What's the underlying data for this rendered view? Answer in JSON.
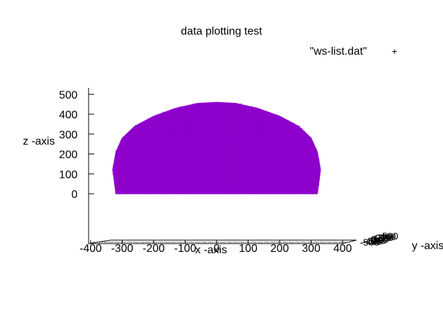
{
  "chart_data": {
    "type": "scatter",
    "title": "data plotting test",
    "xlabel": "x -axis",
    "ylabel": "y -axis",
    "zlabel": "z -axis",
    "legend": {
      "entries": [
        "\"ws-list.dat\""
      ],
      "placement": "top-right"
    },
    "z_ticks": [
      "500",
      "400",
      "300",
      "200",
      "100",
      "0"
    ],
    "x_ticks": [
      "-400",
      "-300",
      "-200",
      "-100",
      "0",
      "100",
      "200",
      "300",
      "400"
    ],
    "y_ticks": [
      "-500",
      "-400",
      "-300",
      "-200",
      "-100",
      "0",
      "100",
      "200",
      "300",
      "400",
      "500"
    ],
    "xlim": [
      -400,
      400
    ],
    "zlim": [
      0,
      500
    ],
    "series": [
      {
        "name": "\"ws-list.dat\"",
        "color": "#9400d3",
        "marker": "+",
        "outline": [
          [
            -320,
            0
          ],
          [
            -330,
            120
          ],
          [
            -320,
            210
          ],
          [
            -300,
            280
          ],
          [
            -260,
            340
          ],
          [
            -200,
            390
          ],
          [
            -130,
            430
          ],
          [
            -60,
            455
          ],
          [
            0,
            460
          ],
          [
            60,
            455
          ],
          [
            130,
            430
          ],
          [
            200,
            390
          ],
          [
            260,
            340
          ],
          [
            300,
            280
          ],
          [
            320,
            210
          ],
          [
            330,
            120
          ],
          [
            320,
            0
          ]
        ]
      }
    ]
  }
}
